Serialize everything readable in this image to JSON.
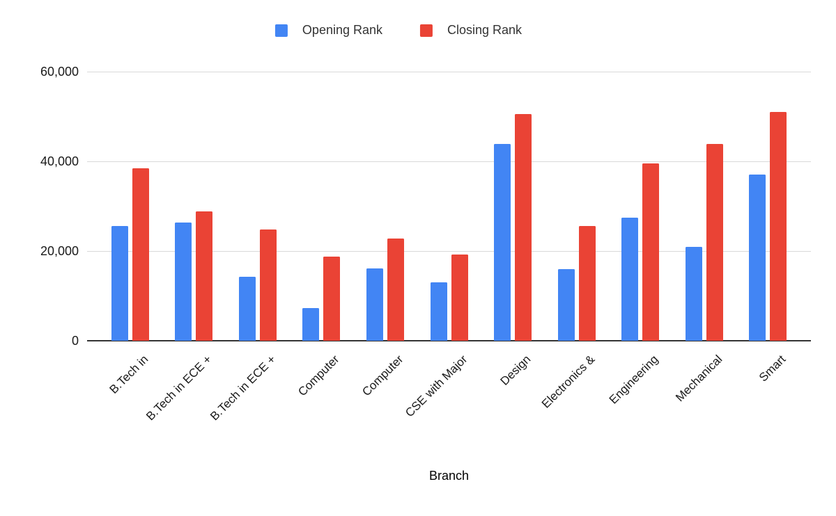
{
  "chart_data": {
    "type": "bar",
    "title": "",
    "xlabel": "Branch",
    "ylabel": "",
    "ylim": [
      0,
      60000
    ],
    "grid": true,
    "legend_position": "top",
    "gridline_color": "#d9d9d9",
    "axis_line_color": "#333333",
    "tick_text_color": "#1a1a1a",
    "legend_text_color": "#333333",
    "background_color": "#ffffff",
    "yticks": [
      {
        "value": 0,
        "label": "0"
      },
      {
        "value": 20000,
        "label": "20,000"
      },
      {
        "value": 40000,
        "label": "40,000"
      },
      {
        "value": 60000,
        "label": "60,000"
      }
    ],
    "categories": [
      "B.Tech in",
      "B.Tech in ECE +",
      "B.Tech in ECE +",
      "Computer",
      "Computer",
      "CSE with Major",
      "Design",
      "Electronics &",
      "Engineering",
      "Mechanical",
      "Smart"
    ],
    "series": [
      {
        "name": "Opening Rank",
        "color": "#4285F4",
        "values": [
          25600,
          26400,
          14300,
          7300,
          16100,
          13000,
          43900,
          16000,
          27500,
          21000,
          37100
        ]
      },
      {
        "name": "Closing Rank",
        "color": "#EA4335",
        "values": [
          38400,
          28800,
          24800,
          18700,
          22800,
          19200,
          50600,
          25600,
          39600,
          43900,
          51000
        ]
      }
    ]
  }
}
